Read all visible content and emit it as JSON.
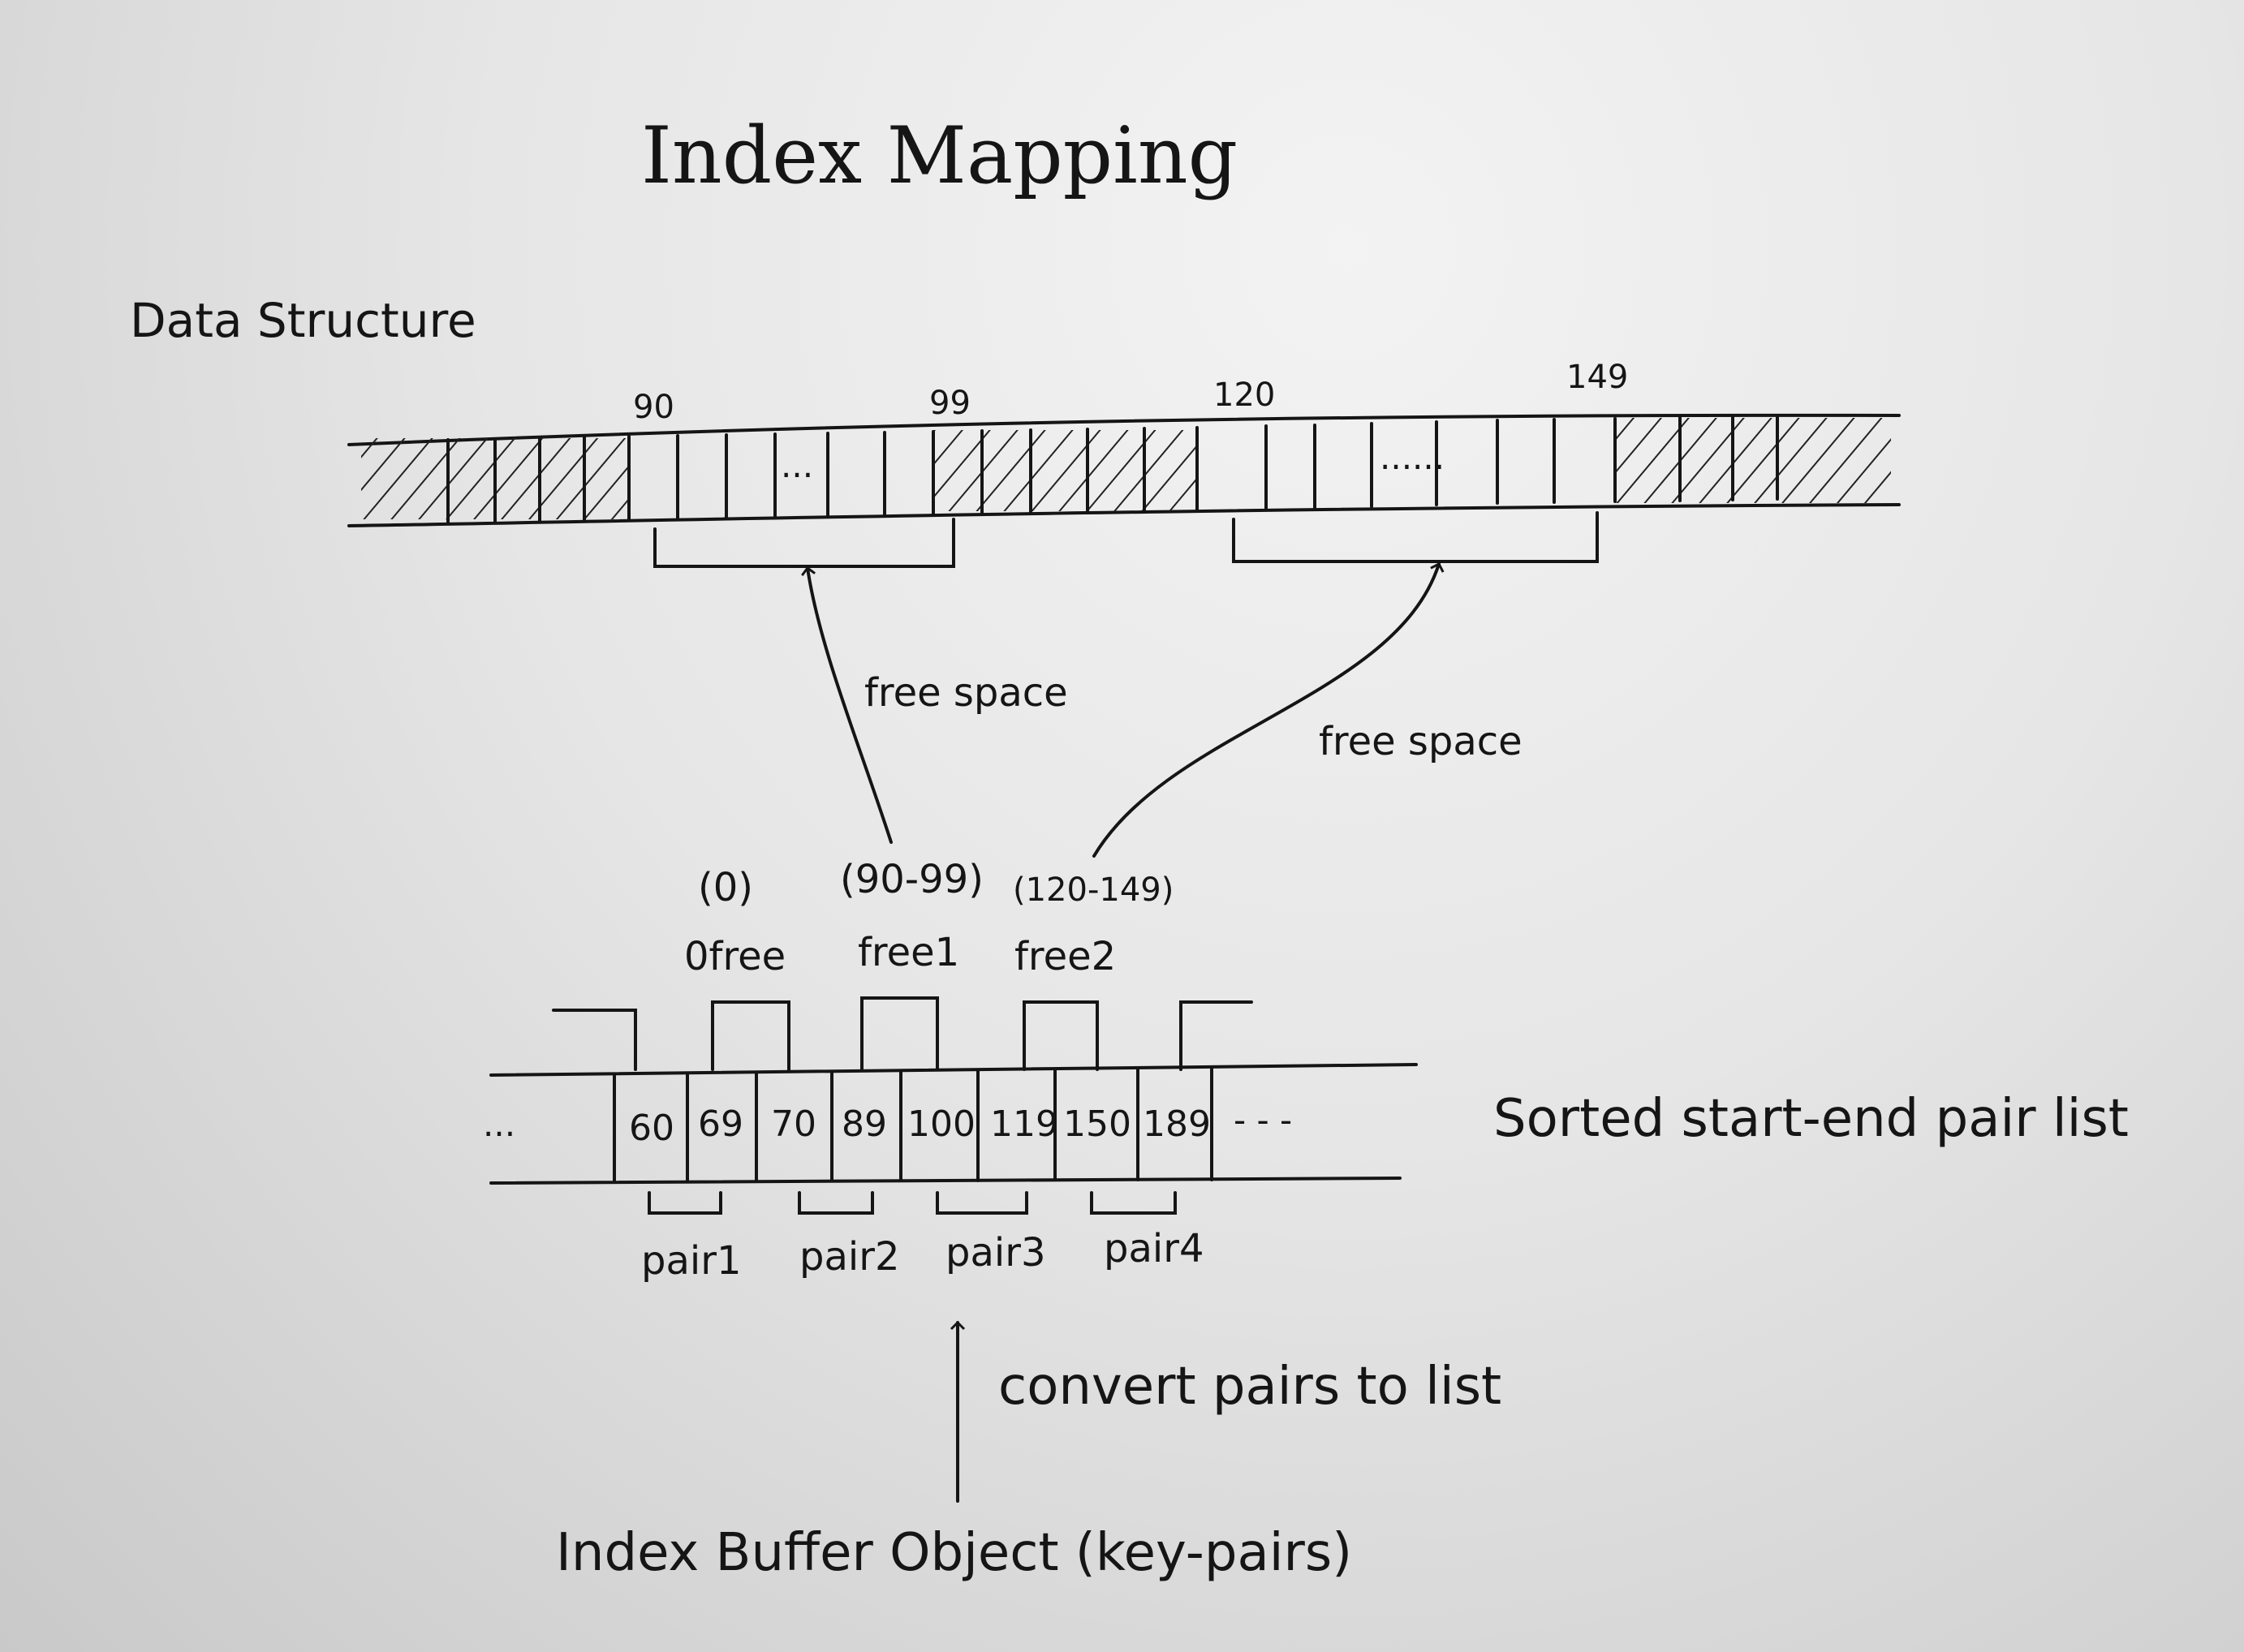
{
  "title": "Index Mapping",
  "section_label": "Data Structure",
  "top_strip": {
    "index_labels": [
      "90",
      "99",
      "120",
      "149"
    ],
    "ellipsis_1": "...",
    "ellipsis_2": "......"
  },
  "arrows": {
    "free_space_1": "free space",
    "free_space_2": "free space"
  },
  "free_lists": [
    {
      "range": "(0)",
      "name": "0free"
    },
    {
      "range": "(90-99)",
      "name": "free1"
    },
    {
      "range": "(120-149)",
      "name": "free2"
    }
  ],
  "pair_list": {
    "label": "Sorted start-end pair list",
    "leading_ellipsis": "...",
    "trailing_ellipsis": "- - -",
    "values": [
      "60",
      "69",
      "70",
      "89",
      "100",
      "119",
      "150",
      "189"
    ],
    "pairs": [
      "pair1",
      "pair2",
      "pair3",
      "pair4"
    ]
  },
  "convert_label": "convert pairs to list",
  "bottom_label": "Index Buffer Object (key-pairs)"
}
